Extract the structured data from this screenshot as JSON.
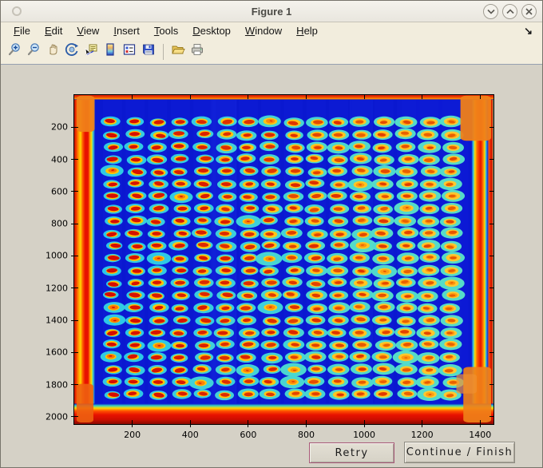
{
  "window": {
    "title": "Figure 1",
    "controls": {
      "minimize": "minimize",
      "maximize": "maximize",
      "close": "close"
    }
  },
  "menubar": {
    "items": [
      "File",
      "Edit",
      "View",
      "Insert",
      "Tools",
      "Desktop",
      "Window",
      "Help"
    ],
    "dock_arrow": "↘"
  },
  "toolbar": {
    "icons": [
      "zoom-in",
      "zoom-out",
      "pan",
      "rotate-3d",
      "data-cursor",
      "insert-colorbar",
      "insert-legend",
      "save-figure",
      "open-file",
      "print-figure"
    ]
  },
  "buttons": {
    "retry": "Retry",
    "continue": "Continue / Finish"
  },
  "chart_data": {
    "type": "heatmap",
    "title": "",
    "xlabel": "",
    "ylabel": "",
    "x_ticks": [
      200,
      400,
      600,
      800,
      1000,
      1200,
      1400
    ],
    "y_ticks": [
      200,
      400,
      600,
      800,
      1000,
      1200,
      1400,
      1600,
      1800,
      2000
    ],
    "x_range": [
      1,
      1446
    ],
    "y_range": [
      1,
      2045
    ],
    "grid_on": false,
    "legend": "none",
    "description": "Jet-colormap pseudocolor scan of a spotted plate: 16 columns x 23 rows of elliptical spots (red/orange cores with yellow rings and cyan halos) on a deep blue field, with hot red/orange saturated bands along all four plate edges.",
    "grid": {
      "cols": 16,
      "rows": 23,
      "x_start": 132,
      "x_step": 78,
      "y_start": 169,
      "y_step": 76.9,
      "spot_radius": 30
    },
    "palette": {
      "field": "#0a18d0",
      "field_light": "#1528e0",
      "halo_left": "#28c6ea",
      "halo_right": "#55dcc8",
      "ring_left": "#ffc400",
      "ring_right": "#ffc830",
      "inner_left": "#ff7300",
      "inner_right": "#ff9d10",
      "center_left": "#d50c00",
      "center_right": "#e96000",
      "band_red": "#e81200",
      "band_orange": "#ff8400",
      "band_yellow": "#ffd800",
      "band_cyan": "#40d4cc",
      "band_dark_red": "#8a0c00",
      "corner_orange": "#f08018"
    }
  },
  "colors": {
    "titlebar_bg": "#f1efe8",
    "menubar_bg": "#f2eddd",
    "canvas_bg": "#d5d1c6",
    "button_face": "#dbd7cb",
    "retry_border": "#a85878",
    "axis": "#000000"
  }
}
